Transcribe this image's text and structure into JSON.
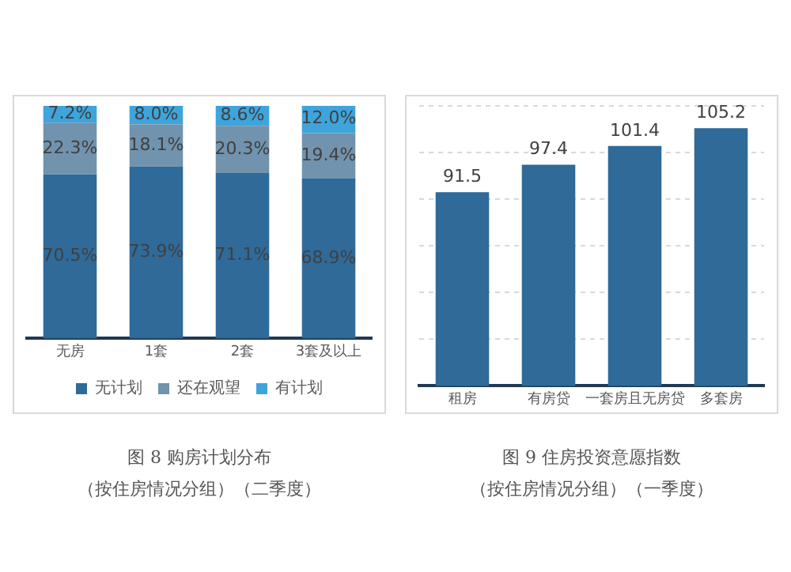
{
  "chart_data": [
    {
      "type": "bar",
      "title": "图 8 购房计划分布",
      "subtitle": "（按住房情况分组）（二季度）",
      "categories": [
        "无房",
        "1套",
        "2套",
        "3套及以上"
      ],
      "stacked": true,
      "ylim": [
        0,
        100
      ],
      "tick_labels": "x",
      "grid": false,
      "legend": "bottom",
      "series": [
        {
          "name": "无计划",
          "color": "#2f6a99",
          "values": [
            70.5,
            73.9,
            71.1,
            68.9
          ],
          "value_labels": [
            "70.5%",
            "73.9%",
            "71.1%",
            "68.9%"
          ]
        },
        {
          "name": "还在观望",
          "color": "#7193ad",
          "values": [
            22.3,
            18.1,
            20.3,
            19.4
          ],
          "value_labels": [
            "22.3%",
            "18.1%",
            "20.3%",
            "19.4%"
          ]
        },
        {
          "name": "有计划",
          "color": "#3ea4dc",
          "values": [
            7.2,
            8.0,
            8.6,
            12.0
          ],
          "value_labels": [
            "7.2%",
            "8.0%",
            "8.6%",
            "12.0%"
          ]
        }
      ]
    },
    {
      "type": "bar",
      "title": "图 9 住房投资意愿指数",
      "subtitle": "（按住房情况分组）（一季度）",
      "categories": [
        "租房",
        "有房贷",
        "一套房且无房贷",
        "多套房"
      ],
      "values": [
        91.5,
        97.4,
        101.4,
        105.2
      ],
      "color": "#2f6a99",
      "data_labels": true,
      "ylim": [
        50,
        110
      ],
      "yticks": [
        {
          "value": 60,
          "label": null
        },
        {
          "value": 70,
          "label": null
        },
        {
          "value": 80,
          "label": null
        },
        {
          "value": 90,
          "label": null
        },
        {
          "value": 100,
          "label": null
        },
        {
          "value": 110,
          "label": null
        }
      ],
      "tick_labels": "x",
      "grid": "y",
      "legend": false
    }
  ]
}
